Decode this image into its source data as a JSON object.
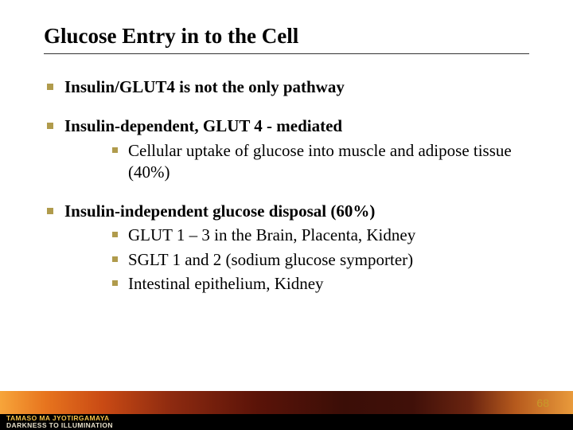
{
  "colors": {
    "bullet": "#b09b4c",
    "title_underline": "#333333",
    "page_num": "#c79a2a",
    "footer_top_text": "#f4c24a",
    "footer_bot_text": "#e6dfc9",
    "background": "#ffffff"
  },
  "title": "Glucose Entry in to the Cell",
  "bullets": {
    "b1": "Insulin/GLUT4 is not the only pathway",
    "b2": "Insulin-dependent, GLUT 4 - mediated",
    "b2_1": "Cellular uptake of glucose into muscle and adipose tissue (40%)",
    "b3": "Insulin-independent glucose disposal (60%)",
    "b3_1": "GLUT 1 – 3 in the Brain, Placenta, Kidney",
    "b3_2": "SGLT 1 and 2 (sodium glucose symporter)",
    "b3_3": "Intestinal epithelium, Kidney"
  },
  "footer": {
    "line_top": "TAMASO MA JYOTIRGAMAYA",
    "line_bot": "DARKNESS TO ILLUMINATION"
  },
  "page_number": "68"
}
